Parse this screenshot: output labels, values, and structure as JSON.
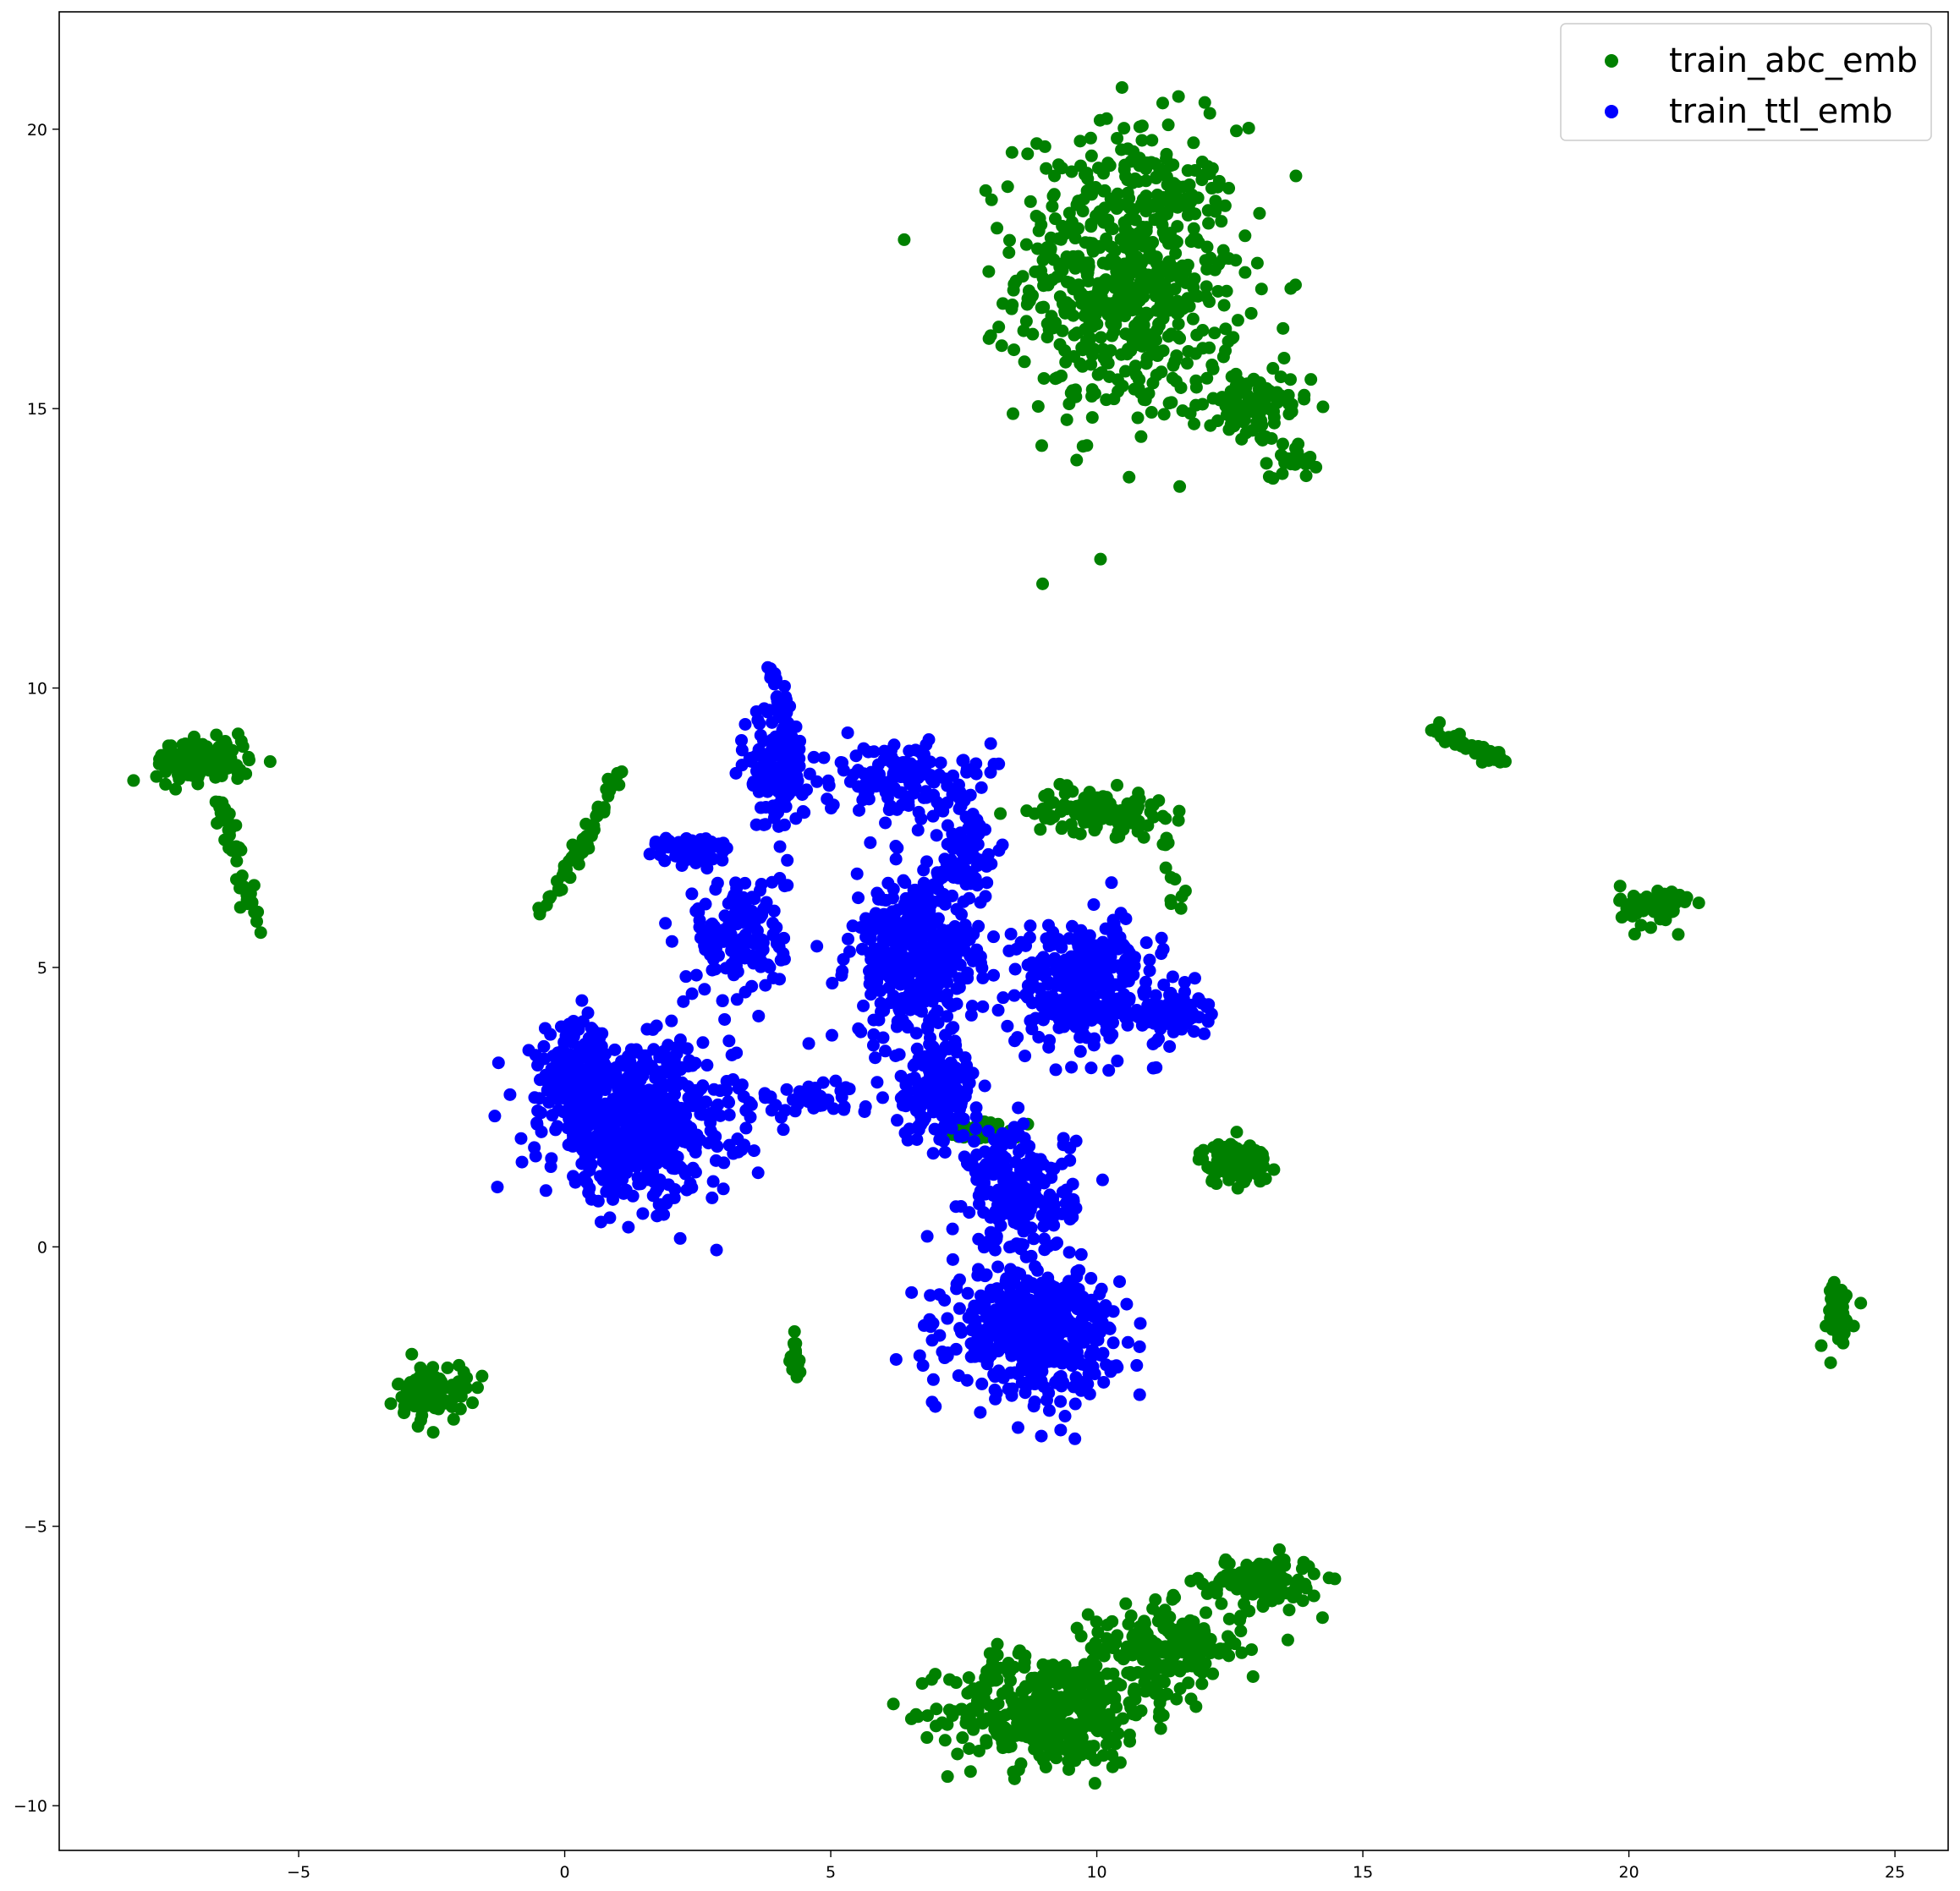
{
  "chart_data": {
    "type": "scatter",
    "xlim": [
      -9.5,
      26
    ],
    "ylim": [
      -10.8,
      22.1
    ],
    "x_ticks": [
      -5,
      0,
      5,
      10,
      15,
      20,
      25
    ],
    "y_ticks": [
      -10,
      -5,
      0,
      5,
      10,
      15,
      20
    ],
    "x_tick_labels": [
      "−5",
      "0",
      "5",
      "10",
      "15",
      "20",
      "25"
    ],
    "y_tick_labels": [
      "−10",
      "−5",
      "0",
      "5",
      "10",
      "15",
      "20"
    ],
    "grid": false,
    "legend_position": "top-right",
    "series": [
      {
        "name": "train_abc_emb",
        "color": "#008000",
        "clusters": [
          {
            "cx": 10.6,
            "cy": 17.4,
            "rx": 1.9,
            "ry": 2.4,
            "n": 650
          },
          {
            "cx": 12.9,
            "cy": 15.0,
            "rx": 1.0,
            "ry": 0.6,
            "n": 90
          },
          {
            "cx": 13.7,
            "cy": 14.1,
            "rx": 0.4,
            "ry": 0.3,
            "n": 25
          },
          {
            "cx": 9.1,
            "cy": -8.3,
            "rx": 1.7,
            "ry": 0.9,
            "n": 420
          },
          {
            "cx": 11.3,
            "cy": -7.2,
            "rx": 1.3,
            "ry": 0.7,
            "n": 200
          },
          {
            "cx": 13.1,
            "cy": -6.0,
            "rx": 1.0,
            "ry": 0.4,
            "n": 120
          },
          {
            "cx": -6.8,
            "cy": 8.7,
            "rx": 0.8,
            "ry": 0.35,
            "n": 130
          },
          {
            "cx": 10.0,
            "cy": 7.8,
            "rx": 1.1,
            "ry": 0.35,
            "n": 120
          },
          {
            "cx": 12.6,
            "cy": 1.5,
            "rx": 0.6,
            "ry": 0.35,
            "n": 90
          },
          {
            "cx": 20.5,
            "cy": 6.1,
            "rx": 0.6,
            "ry": 0.35,
            "n": 70
          },
          {
            "cx": -2.5,
            "cy": -2.6,
            "rx": 0.6,
            "ry": 0.45,
            "n": 90
          },
          {
            "cx": 7.9,
            "cy": 2.1,
            "rx": 0.6,
            "ry": 0.15,
            "n": 40
          },
          {
            "cx": 23.9,
            "cy": -1.2,
            "rx": 0.3,
            "ry": 0.6,
            "n": 50
          }
        ],
        "paths": [
          {
            "x0": -6.5,
            "y0": 8.0,
            "x1": -5.8,
            "y1": 5.7,
            "n": 45
          },
          {
            "x0": -0.5,
            "y0": 5.9,
            "x1": 1.1,
            "y1": 8.5,
            "n": 60
          },
          {
            "x0": 16.2,
            "y0": 9.3,
            "x1": 17.6,
            "y1": 8.7,
            "n": 40
          },
          {
            "x0": 4.3,
            "y0": -1.5,
            "x1": 4.4,
            "y1": -2.4,
            "n": 15
          },
          {
            "x0": 11.3,
            "y0": 7.2,
            "x1": 11.6,
            "y1": 6.0,
            "n": 12
          }
        ]
      },
      {
        "name": "train_ttl_emb",
        "color": "#0000ff",
        "clusters": [
          {
            "cx": 1.4,
            "cy": 2.2,
            "rx": 1.6,
            "ry": 1.2,
            "n": 620
          },
          {
            "cx": 0.2,
            "cy": 3.1,
            "rx": 0.6,
            "ry": 0.8,
            "n": 150
          },
          {
            "cx": 8.8,
            "cy": -1.5,
            "rx": 1.4,
            "ry": 1.0,
            "n": 500
          },
          {
            "cx": 8.6,
            "cy": 1.0,
            "rx": 0.9,
            "ry": 1.0,
            "n": 220
          },
          {
            "cx": 6.6,
            "cy": 5.2,
            "rx": 1.1,
            "ry": 1.3,
            "n": 380
          },
          {
            "cx": 7.0,
            "cy": 2.8,
            "rx": 0.7,
            "ry": 0.8,
            "n": 160
          },
          {
            "cx": 9.8,
            "cy": 4.7,
            "rx": 1.2,
            "ry": 1.0,
            "n": 330
          },
          {
            "cx": 11.4,
            "cy": 4.2,
            "rx": 0.6,
            "ry": 0.4,
            "n": 70
          },
          {
            "cx": 3.3,
            "cy": 5.6,
            "rx": 0.8,
            "ry": 1.1,
            "n": 160
          },
          {
            "cx": 2.5,
            "cy": 7.1,
            "rx": 0.6,
            "ry": 0.25,
            "n": 80
          },
          {
            "cx": 4.0,
            "cy": 8.6,
            "rx": 0.5,
            "ry": 1.0,
            "n": 140
          },
          {
            "cx": 6.2,
            "cy": 8.4,
            "rx": 1.2,
            "ry": 0.6,
            "n": 130
          },
          {
            "cx": 7.5,
            "cy": 7.2,
            "rx": 0.5,
            "ry": 0.8,
            "n": 90
          },
          {
            "cx": 4.6,
            "cy": 2.6,
            "rx": 1.2,
            "ry": 0.3,
            "n": 40
          }
        ],
        "paths": [
          {
            "x0": 3.9,
            "y0": 10.4,
            "x1": 4.3,
            "y1": 8.8,
            "n": 40
          }
        ]
      }
    ]
  }
}
